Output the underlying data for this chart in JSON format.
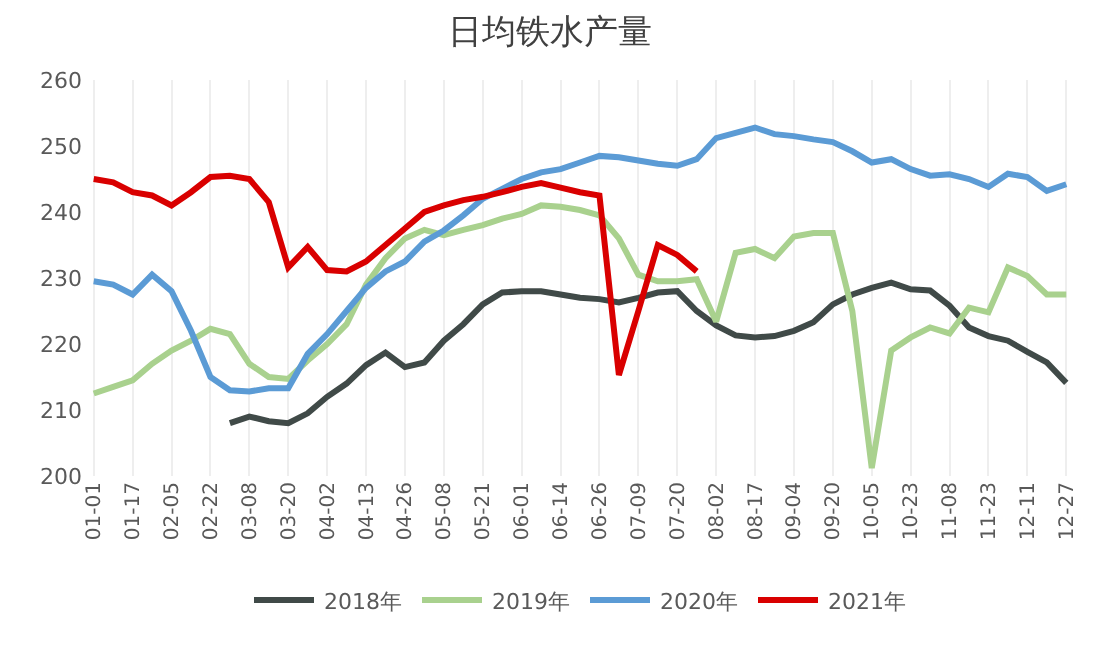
{
  "chart_data": {
    "type": "line",
    "title": "日均铁水产量",
    "categories": [
      "01-01",
      null,
      "01-17",
      null,
      "02-05",
      null,
      "02-22",
      null,
      "03-08",
      null,
      "03-20",
      null,
      "04-02",
      null,
      "04-13",
      null,
      "04-26",
      null,
      "05-08",
      null,
      "05-21",
      null,
      "06-01",
      null,
      "06-14",
      null,
      "06-26",
      null,
      "07-09",
      null,
      "07-20",
      null,
      "08-02",
      null,
      "08-17",
      null,
      "09-04",
      null,
      "09-20",
      null,
      "10-05",
      null,
      "10-23",
      null,
      "11-08",
      null,
      "11-23",
      null,
      "12-11",
      null,
      "12-27"
    ],
    "ylim": [
      200,
      260
    ],
    "yticks": [
      200,
      210,
      220,
      230,
      240,
      250,
      260
    ],
    "grid": "x",
    "legend": "bottom",
    "marker": "none",
    "line_style": "solid",
    "series": [
      {
        "name": "2018年",
        "color": "#404a48",
        "values": [
          null,
          null,
          null,
          null,
          null,
          null,
          null,
          208,
          209,
          208.3,
          208,
          209.5,
          212,
          214,
          216.8,
          218.7,
          216.5,
          217.2,
          220.5,
          223,
          226,
          227.8,
          228,
          228,
          227.5,
          227,
          226.8,
          226.3,
          227,
          227.8,
          228,
          225,
          222.8,
          221.3,
          221,
          221.2,
          222,
          223.3,
          226,
          227.5,
          228.5,
          229.3,
          228.3,
          228.1,
          225.8,
          222.5,
          221.2,
          220.5,
          218.8,
          217.2,
          214.1
        ]
      },
      {
        "name": "2019年",
        "color": "#a9d18e",
        "values": [
          212.5,
          213.5,
          214.5,
          217,
          219,
          220.5,
          222.3,
          221.5,
          217,
          215,
          214.7,
          217.5,
          220,
          223,
          229,
          233,
          236,
          237.3,
          236.5,
          237.3,
          238,
          239,
          239.7,
          241,
          240.8,
          240.3,
          239.5,
          236,
          230.5,
          229.5,
          229.5,
          229.8,
          223.4,
          233.8,
          234.4,
          233,
          236.3,
          236.8,
          236.8,
          225,
          201.2,
          219,
          221,
          222.5,
          221.6,
          225.5,
          224.8,
          231.6,
          230.3,
          227.5,
          227.5
        ]
      },
      {
        "name": "2020年",
        "color": "#5b9bd5",
        "values": [
          229.5,
          229,
          227.5,
          230.5,
          228,
          222,
          215,
          213,
          212.8,
          213.3,
          213.3,
          218.5,
          221.5,
          225,
          228.5,
          231,
          232.5,
          235.5,
          237.2,
          239.5,
          242,
          243.5,
          245,
          246,
          246.5,
          247.5,
          248.5,
          248.3,
          247.8,
          247.3,
          247,
          248,
          251.2,
          252,
          252.8,
          251.8,
          251.5,
          251,
          250.6,
          249.2,
          247.5,
          248,
          246.5,
          245.5,
          245.7,
          245,
          243.8,
          245.8,
          245.3,
          243.2,
          244.2
        ]
      },
      {
        "name": "2021年",
        "color": "#d90000",
        "values": [
          245,
          244.5,
          243,
          242.5,
          241,
          243,
          245.3,
          245.5,
          245,
          241.5,
          231.6,
          234.7,
          231.2,
          231,
          232.5,
          235,
          237.5,
          240,
          241,
          241.8,
          242.3,
          243,
          243.8,
          244.4,
          243.7,
          243,
          242.5,
          215.3,
          225,
          235,
          233.5,
          231,
          null,
          null,
          null,
          null,
          null,
          null,
          null,
          null,
          null,
          null,
          null,
          null,
          null,
          null,
          null,
          null,
          null,
          null,
          null
        ]
      }
    ]
  }
}
